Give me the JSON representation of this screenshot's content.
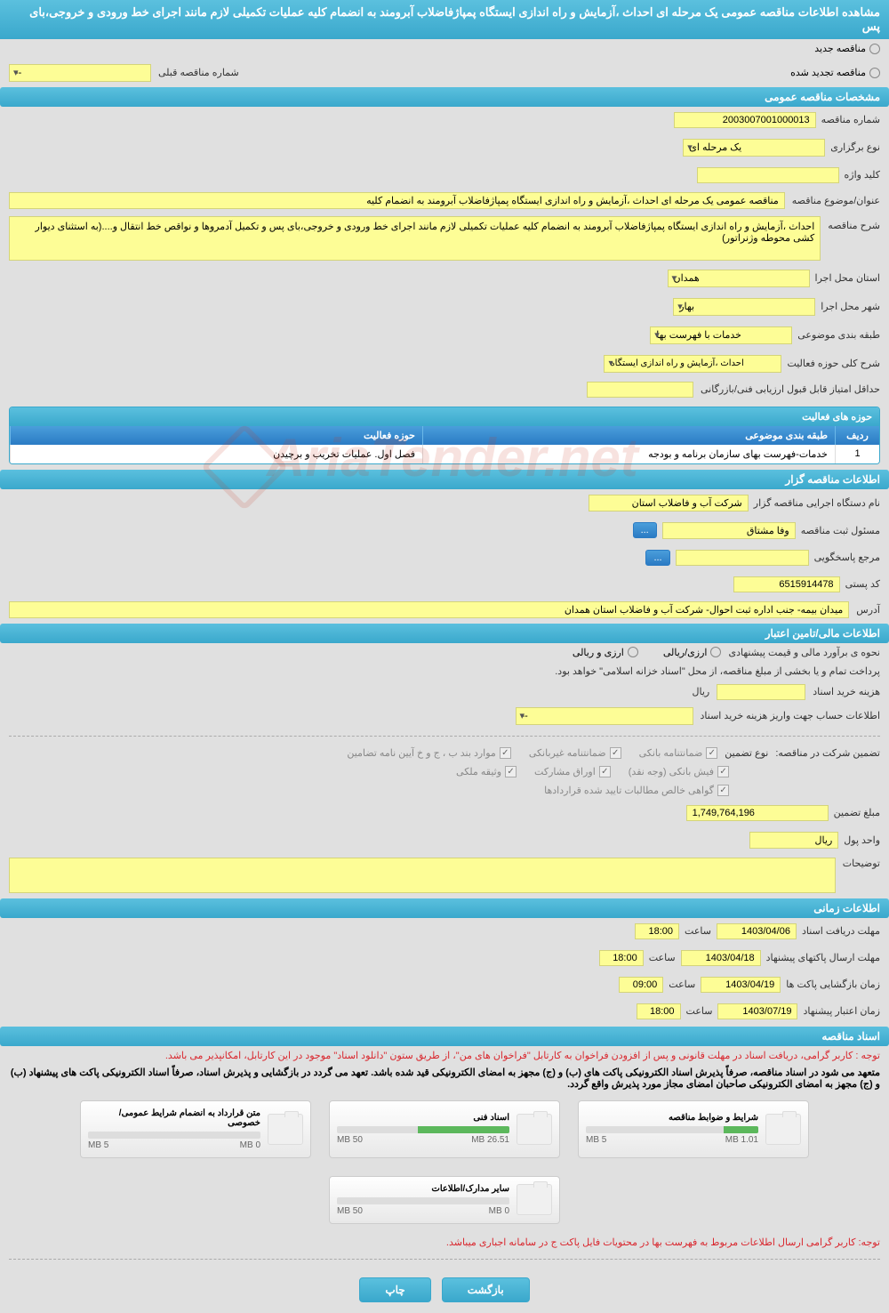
{
  "header_title": "مشاهده اطلاعات مناقصه عمومی یک مرحله ای احداث ،آزمایش و راه اندازی ایستگاه پمپاژفاضلاب آبرومند به انضمام کلیه عملیات تکمیلی لازم مانند اجرای خط ورودی و خروجی،بای پس",
  "radio_new": "مناقصه جدید",
  "radio_renewed": "مناقصه تجدید شده",
  "prev_number_label": "شماره مناقصه قبلی",
  "prev_number_value": "--",
  "sections": {
    "general": "مشخصات مناقصه عمومی",
    "org": "اطلاعات مناقصه گزار",
    "financial": "اطلاعات مالی/تامین اعتبار",
    "time": "اطلاعات زمانی",
    "docs": "اسناد مناقصه"
  },
  "general": {
    "number_label": "شماره مناقصه",
    "number": "2003007001000013",
    "type_label": "نوع برگزاری",
    "type": "یک مرحله ای",
    "keyword_label": "کلید واژه",
    "keyword": "",
    "subject_label": "عنوان/موضوع مناقصه",
    "subject": "مناقصه عمومی یک مرحله ای احداث ،آزمایش و راه اندازی ایستگاه پمپاژفاضلاب آبرومند به انضمام کلیه",
    "desc_label": "شرح مناقصه",
    "desc": "احداث ،آزمایش و راه اندازی ایستگاه پمپاژفاضلاب آبرومند به انضمام کلیه عملیات تکمیلی لازم مانند اجرای خط ورودی و خروجی،بای پس و تکمیل آدمروها و نواقص خط انتقال و....(به استثنای دیوار کشی محوطه وژنراتور)",
    "province_label": "استان محل اجرا",
    "province": "همدان",
    "city_label": "شهر محل اجرا",
    "city": "بهار",
    "category_label": "طبقه بندی موضوعی",
    "category": "خدمات با فهرست بها",
    "activity_scope_label": "شرح کلی حوزه فعالیت",
    "activity_scope": "احداث ،آزمایش و راه اندازی ایستگاه",
    "min_score_label": "حداقل امتیاز قابل قبول ارزیابی فنی/بازرگانی",
    "min_score": ""
  },
  "activity_table": {
    "title": "حوزه های فعالیت",
    "col_idx": "ردیف",
    "col_cat": "طبقه بندی موضوعی",
    "col_act": "حوزه فعالیت",
    "row_idx": "1",
    "row_cat": "خدمات-فهرست بهای سازمان برنامه و بودجه",
    "row_act": "فصل اول. عملیات تخریب و برچیدن"
  },
  "org": {
    "exec_label": "نام دستگاه اجرایی مناقصه گزار",
    "exec": "شرکت آب و فاضلاب استان",
    "reg_officer_label": "مسئول ثبت مناقصه",
    "reg_officer": "وفا مشتاق",
    "responder_label": "مرجع پاسخگویی",
    "responder": "",
    "postal_label": "کد پستی",
    "postal": "6515914478",
    "address_label": "آدرس",
    "address": "میدان بیمه- جنب اداره ثبت احوال- شرکت آب و فاضلاب استان همدان"
  },
  "financial": {
    "method_label": "نحوه ی برآورد مالی و قیمت پیشنهادی",
    "opt_arzi_riali": "ارزی/ریالی",
    "opt_arzi_riali2": "ارزی و ریالی",
    "payment_note": "پرداخت تمام و یا بخشی از مبلغ مناقصه، از محل \"اسناد خزانه اسلامی\" خواهد بود.",
    "doc_cost_label": "هزینه خرید اسناد",
    "rial": "ریال",
    "deposit_info_label": "اطلاعات حساب جهت واریز هزینه خرید اسناد",
    "deposit_info": "--",
    "guarantee_label": "تضمین شرکت در مناقصه:",
    "guarantee_type_label": "نوع تضمین",
    "cb_bank_guarantee": "ضمانتنامه بانکی",
    "cb_nonbank_guarantee": "ضمانتنامه غیربانکی",
    "cb_items_bjh": "موارد بند ب ، ج و خ آیین نامه تضامین",
    "cb_bank_fish": "فیش بانکی (وجه نقد)",
    "cb_participation": "اوراق مشارکت",
    "cb_property": "وثیقه ملکی",
    "cb_net_claims": "گواهی خالص مطالبات تایید شده قراردادها",
    "amount_label": "مبلغ تضمین",
    "amount": "1,749,764,196",
    "unit_label": "واحد پول",
    "unit": "ریال",
    "notes_label": "توضیحات",
    "notes": ""
  },
  "time": {
    "receive_deadline_label": "مهلت دریافت اسناد",
    "receive_deadline": "1403/04/06",
    "receive_time": "18:00",
    "submit_deadline_label": "مهلت ارسال پاکتهای پیشنهاد",
    "submit_deadline": "1403/04/18",
    "submit_time": "18:00",
    "open_time_label": "زمان بازگشایی پاکت ها",
    "open_date": "1403/04/19",
    "open_time": "09:00",
    "validity_label": "زمان اعتبار پیشنهاد",
    "validity_date": "1403/07/19",
    "validity_time": "18:00",
    "saat": "ساعت"
  },
  "docs": {
    "note1": "توجه : کاربر گرامی، دریافت اسناد در مهلت قانونی و پس از افزودن فراخوان به کارتابل \"فراخوان های من\"، از طریق ستون \"دانلود اسناد\" موجود در این کارتابل، امکانپذیر می باشد.",
    "note2": "متعهد می شود در اسناد مناقصه، صرفاً پذیرش اسناد الکترونیکی پاکت های (ب) و (ج) مجهز به امضای الکترونیکی قید شده باشد. تعهد می گردد در بازگشایی و پذیرش اسناد، صرفاً اسناد الکترونیکی پاکت های پیشنهاد (ب) و (ج) مجهز به امضای الکترونیکی صاحبان امضای مجاز مورد پذیرش واقع گردد.",
    "note3": "توجه: کاربر گرامی ارسال اطلاعات مربوط به فهرست بها در محتویات فایل پاکت ج در سامانه اجباری میباشد.",
    "files": [
      {
        "name": "شرایط و ضوابط مناقصه",
        "used": "1.01 MB",
        "total": "5 MB",
        "pct": 20
      },
      {
        "name": "اسناد فنی",
        "used": "26.51 MB",
        "total": "50 MB",
        "pct": 53
      },
      {
        "name": "متن قرارداد به انضمام شرایط عمومی/خصوصی",
        "used": "0 MB",
        "total": "5 MB",
        "pct": 0
      },
      {
        "name": "سایر مدارک/اطلاعات",
        "used": "0 MB",
        "total": "50 MB",
        "pct": 0
      }
    ]
  },
  "buttons": {
    "back": "بازگشت",
    "print": "چاپ",
    "more": "..."
  },
  "watermark": "AriaTender.net"
}
